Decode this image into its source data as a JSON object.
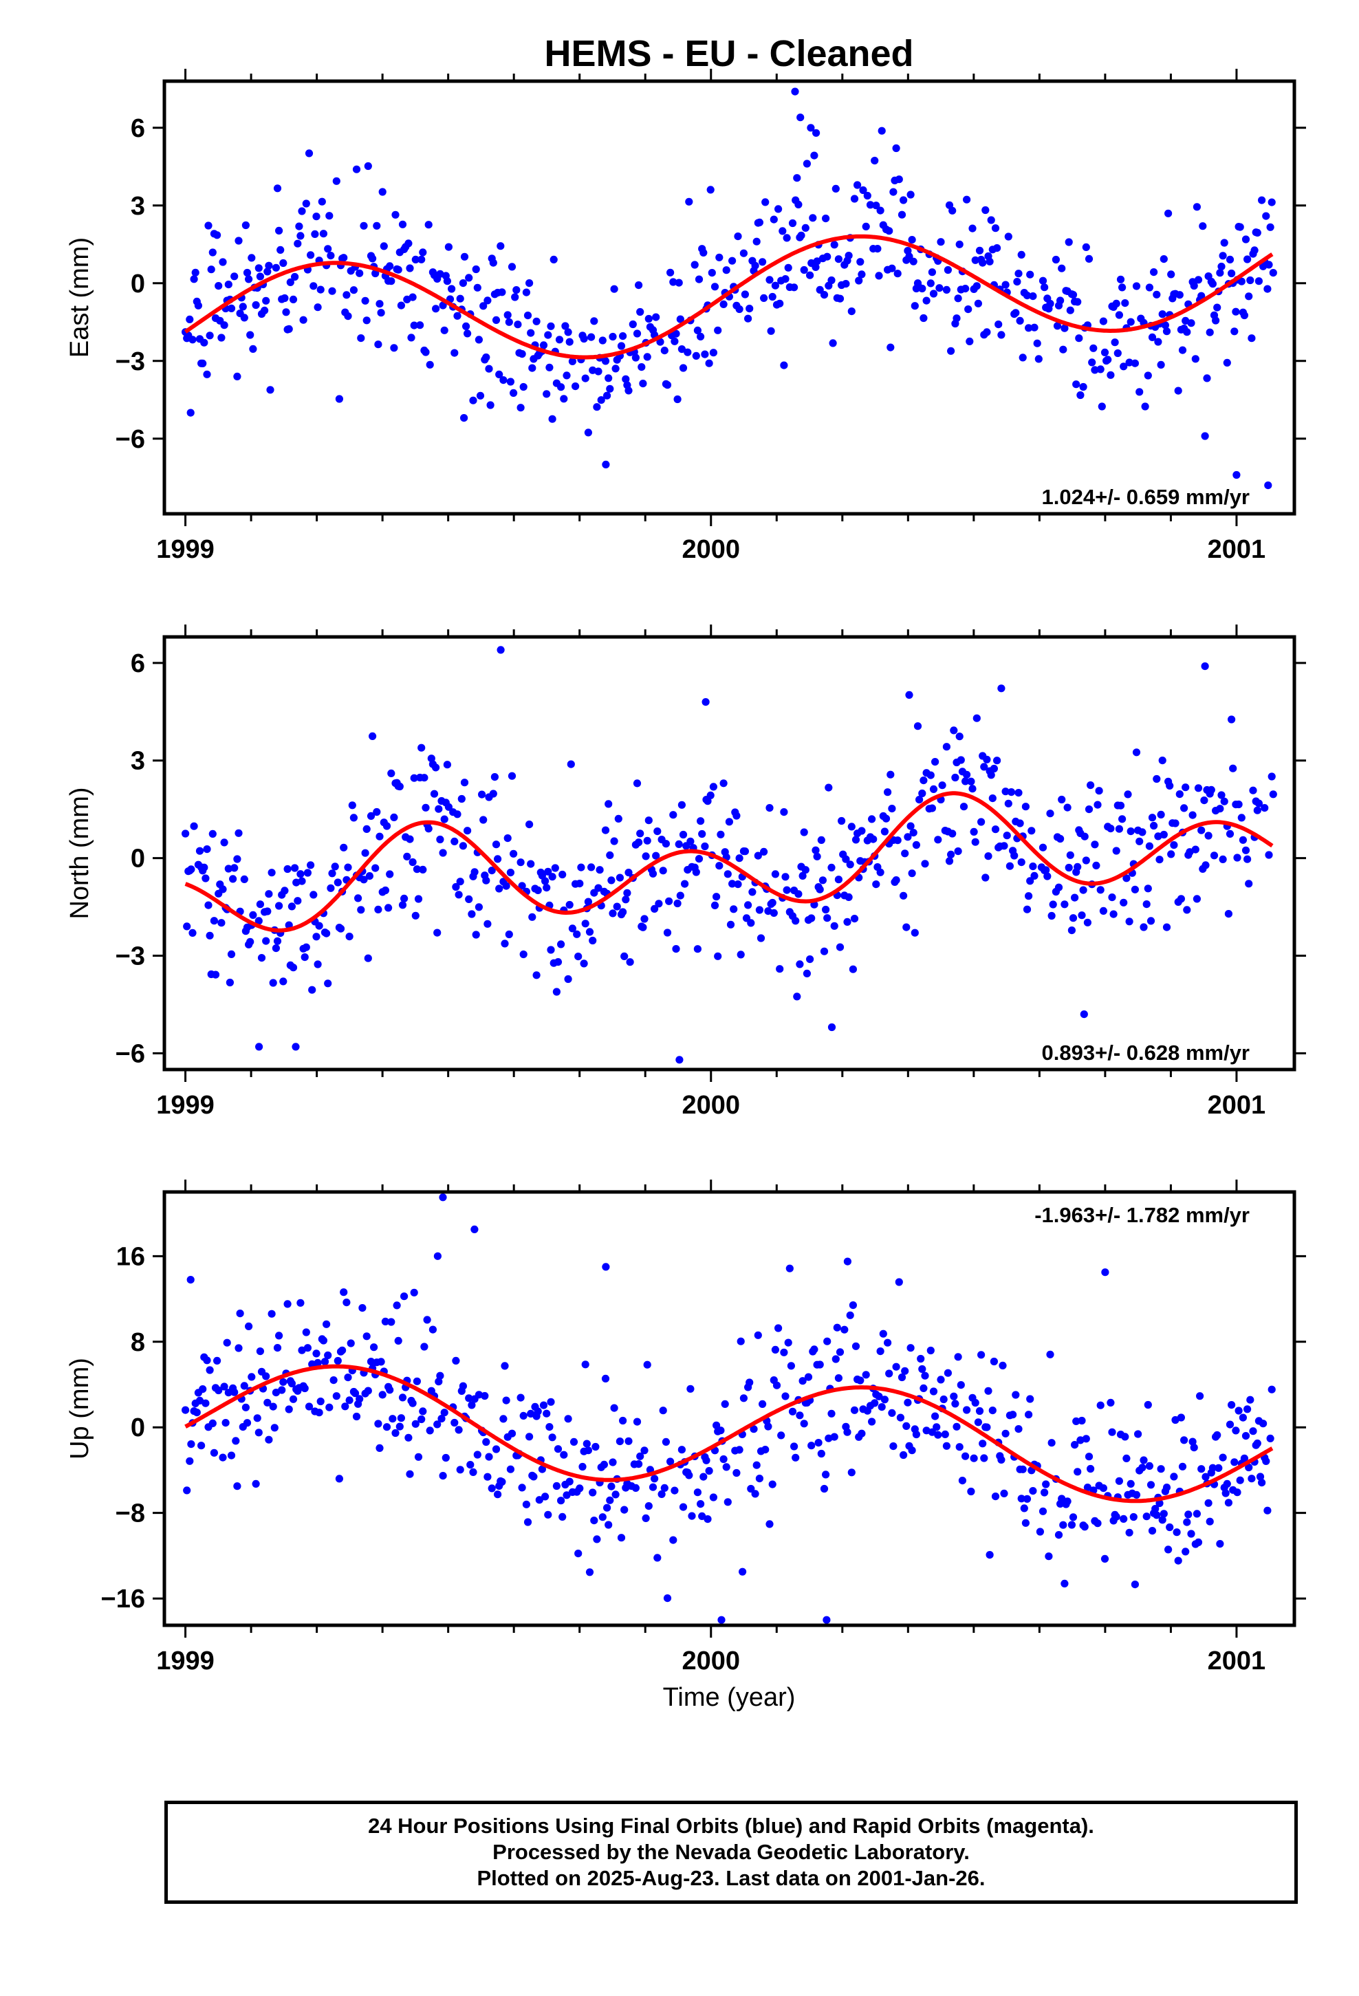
{
  "title": "HEMS  - EU - Cleaned",
  "xlabel": "Time (year)",
  "colors": {
    "points": "#0000ff",
    "fit": "#ff0000",
    "frame": "#000000"
  },
  "footer": {
    "line1": "24 Hour Positions Using Final Orbits (blue) and Rapid Orbits (magenta).",
    "line2": "Processed by the Nevada Geodetic Laboratory.",
    "line3": "Plotted on 2025-Aug-23. Last data on 2001-Jan-26."
  },
  "chart_data": [
    {
      "type": "scatter",
      "component": "east",
      "ylabel": "East (mm)",
      "xlim": [
        1998.96,
        2001.11
      ],
      "ylim": [
        -8.9,
        7.8
      ],
      "xticks": [
        1999,
        2000,
        2001
      ],
      "yticks": [
        -6,
        -3,
        0,
        3,
        6
      ],
      "rate_text": "1.024+/- 0.659 mm/yr",
      "rate_position": "bottom-right",
      "noise_sd": 1.5,
      "model": {
        "offset": -0.55,
        "rate": 1.024,
        "ref_year": 2000.0,
        "annual_cos": -0.3,
        "annual_sin": 2.05,
        "semi_cos": 0.0,
        "semi_sin": 0.0
      },
      "outliers": [
        [
          2000.16,
          7.4
        ],
        [
          2000.17,
          6.4
        ],
        [
          2000.19,
          6.0
        ],
        [
          2000.2,
          5.8
        ],
        [
          1999.8,
          -7.0
        ],
        [
          2001.0,
          -7.4
        ],
        [
          2001.06,
          -7.8
        ],
        [
          1999.01,
          -5.0
        ],
        [
          1999.53,
          -5.2
        ],
        [
          2000.94,
          -5.9
        ]
      ],
      "fit": {
        "color": "#ff0000",
        "shape": "seasonal"
      }
    },
    {
      "type": "scatter",
      "component": "north",
      "ylabel": "North (mm)",
      "xlim": [
        1998.96,
        2001.11
      ],
      "ylim": [
        -6.5,
        6.8
      ],
      "xticks": [
        1999,
        2000,
        2001
      ],
      "yticks": [
        -6,
        -3,
        0,
        3,
        6
      ],
      "rate_text": "0.893+/- 0.628 mm/yr",
      "rate_position": "bottom-right",
      "noise_sd": 1.35,
      "model": {
        "offset": -0.25,
        "rate": 0.893,
        "ref_year": 2000.0,
        "annual_cos": -0.65,
        "annual_sin": 0.15,
        "semi_cos": 1.0,
        "semi_sin": -0.6
      },
      "outliers": [
        [
          1999.6,
          6.4
        ],
        [
          1999.94,
          -6.2
        ],
        [
          1999.99,
          4.8
        ],
        [
          2000.94,
          5.9
        ],
        [
          1999.14,
          -5.8
        ],
        [
          1999.21,
          -5.8
        ],
        [
          2000.71,
          -4.8
        ],
        [
          2000.23,
          -5.2
        ]
      ],
      "fit": {
        "color": "#ff0000",
        "shape": "seasonal"
      }
    },
    {
      "type": "scatter",
      "component": "up",
      "ylabel": "Up (mm)",
      "xlim": [
        1998.96,
        2001.11
      ],
      "ylim": [
        -18.5,
        22.0
      ],
      "xticks": [
        1999,
        2000,
        2001
      ],
      "yticks": [
        -16,
        -8,
        0,
        8,
        16
      ],
      "rate_text": "-1.963+/- 1.782 mm/yr",
      "rate_position": "top-right",
      "noise_sd": 4.0,
      "model": {
        "offset": -0.5,
        "rate": -1.963,
        "ref_year": 2000.0,
        "annual_cos": -1.4,
        "annual_sin": 4.6,
        "semi_cos": 0.0,
        "semi_sin": 0.0
      },
      "outliers": [
        [
          1999.49,
          21.5
        ],
        [
          1999.55,
          18.5
        ],
        [
          1999.48,
          16.0
        ],
        [
          2000.22,
          -18.0
        ],
        [
          2000.02,
          -18.0
        ],
        [
          2000.26,
          15.5
        ],
        [
          1999.8,
          15.0
        ],
        [
          2000.75,
          14.5
        ],
        [
          1999.01,
          13.8
        ],
        [
          2000.06,
          -13.5
        ]
      ],
      "fit": {
        "color": "#ff0000",
        "shape": "seasonal"
      }
    }
  ]
}
